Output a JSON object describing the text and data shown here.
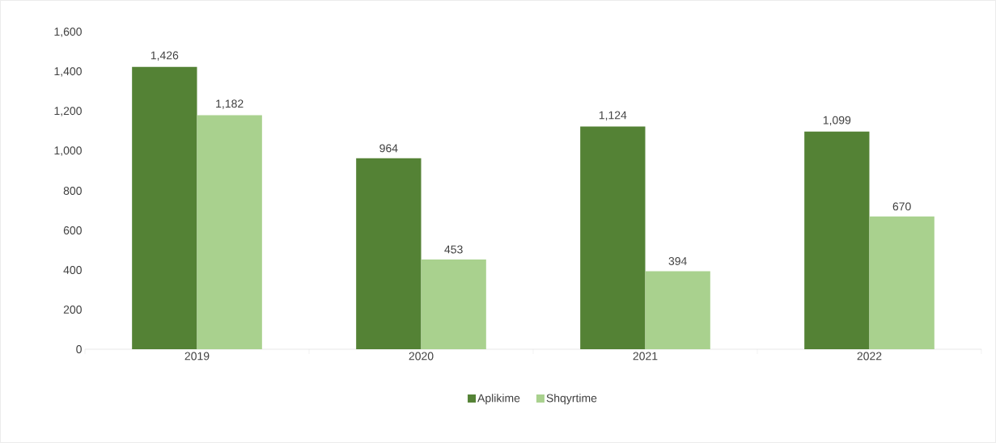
{
  "chart_data": {
    "type": "bar",
    "categories": [
      "2019",
      "2020",
      "2021",
      "2022"
    ],
    "series": [
      {
        "name": "Aplikime",
        "color": "#548235",
        "values": [
          1426,
          964,
          1124,
          1099
        ],
        "value_labels": [
          "1,426",
          "964",
          "1,124",
          "1,099"
        ]
      },
      {
        "name": "Shqyrtime",
        "color": "#a9d18e",
        "values": [
          1182,
          453,
          394,
          670
        ],
        "value_labels": [
          "1,182",
          "453",
          "394",
          "670"
        ]
      }
    ],
    "ylim": [
      0,
      1600
    ],
    "yticks": [
      0,
      200,
      400,
      600,
      800,
      {
        "value": 1000,
        "label": "1,000"
      },
      {
        "value": 1200,
        "label": "1,200"
      },
      {
        "value": 1400,
        "label": "1,400"
      },
      {
        "value": 1600,
        "label": "1,600"
      }
    ],
    "legend": "bottom"
  }
}
